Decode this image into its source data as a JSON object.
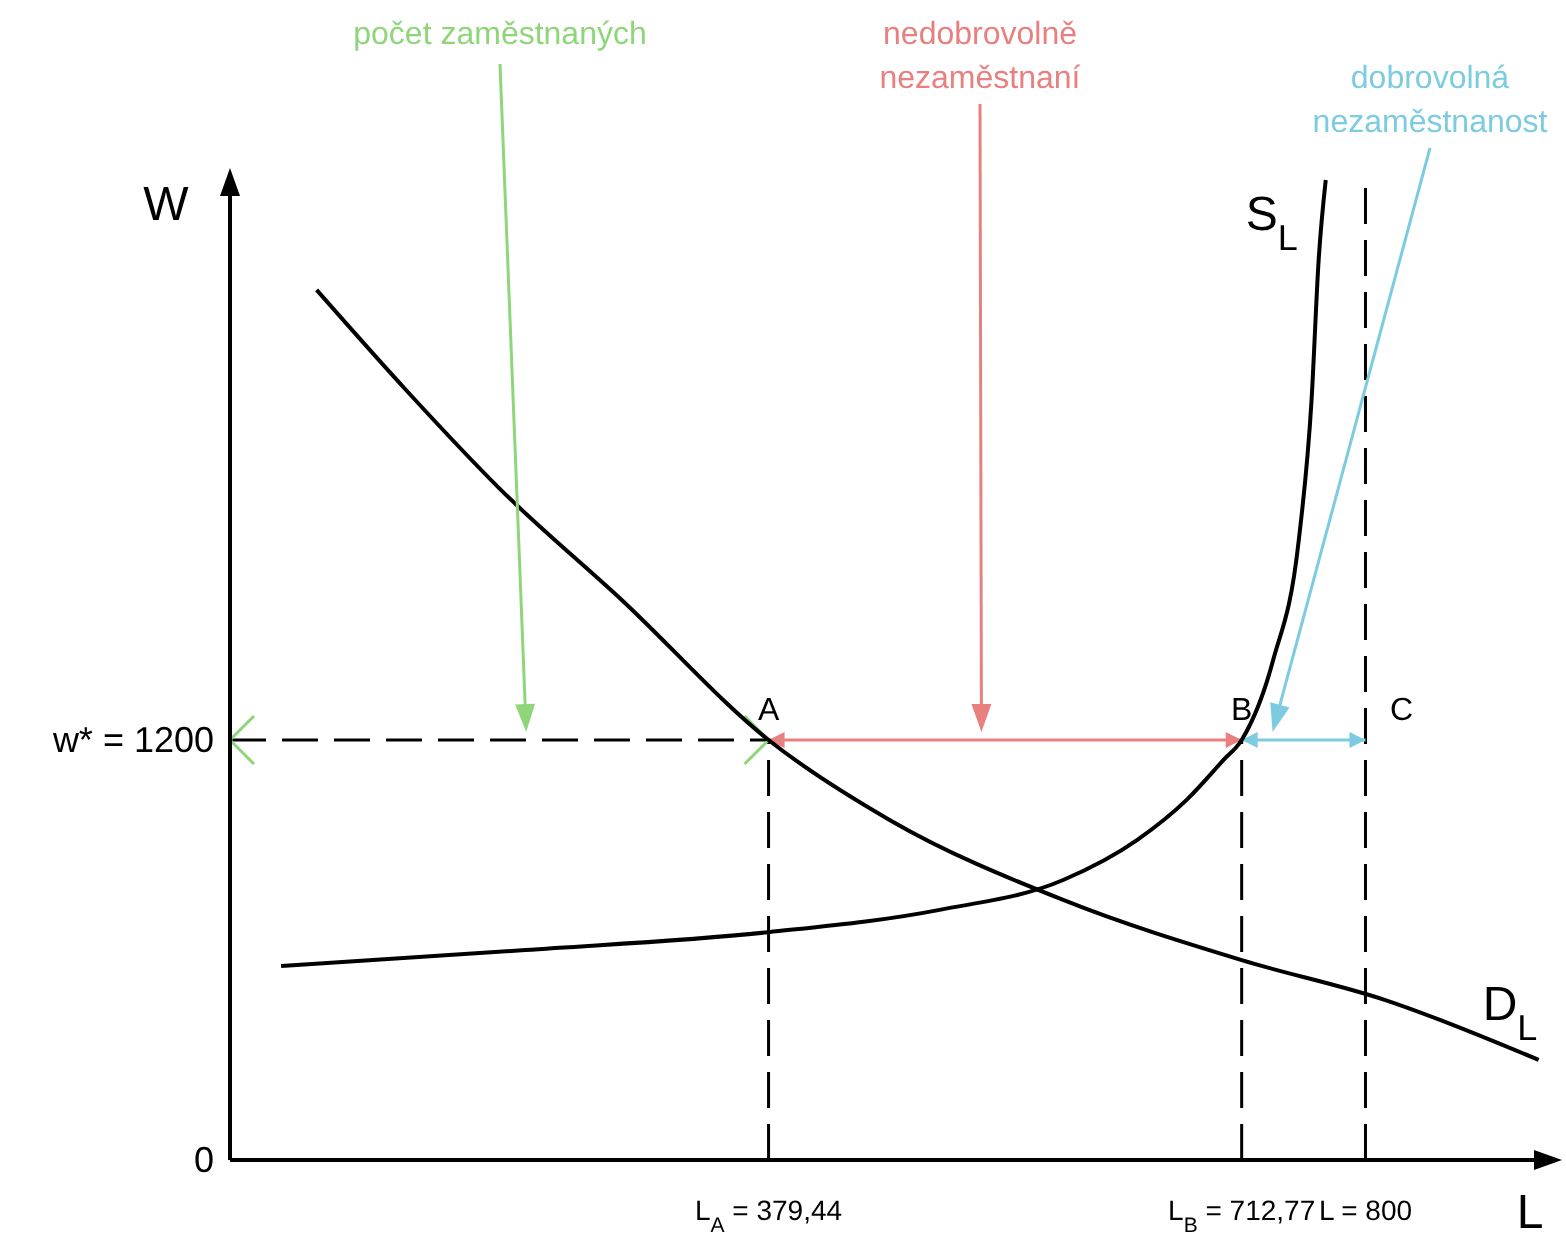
{
  "chart_data": {
    "type": "line",
    "xlabel": "L",
    "ylabel": "W",
    "xlim": [
      0,
      930
    ],
    "ylim": [
      0,
      2800
    ],
    "xticks": [
      {
        "value": 379.44,
        "label": "L$_{A}$ = 379,44"
      },
      {
        "value": 712.77,
        "label": "L$_{B}$ = 712,77"
      },
      {
        "value": 800,
        "label": "L = 800"
      }
    ],
    "yticks": [
      {
        "value": 0,
        "label": "0"
      },
      {
        "value": 1200,
        "label": "w* = 1200"
      }
    ],
    "marker": "none",
    "line_style": "solid",
    "series": [
      {
        "name": "D$_{L}$",
        "color": "#000000",
        "x": [
          61,
          124,
          191,
          276,
          379.44,
          465,
          587,
          712.77,
          814,
          922
        ],
        "values": [
          2486,
          2200,
          1914,
          1600,
          1200,
          971,
          743,
          571,
          457,
          286
        ]
      },
      {
        "name": "S$_{L}$",
        "color": "#000000",
        "x": [
          36,
          208,
          379.44,
          499,
          587,
          639,
          674,
          700,
          712.77,
          735,
          753,
          762,
          767,
          772
        ],
        "values": [
          554,
          600,
          651,
          714,
          800,
          914,
          1029,
          1143,
          1200,
          1429,
          1771,
          2171,
          2571,
          2800
        ]
      }
    ],
    "ref_lines": [
      {
        "axis": "y",
        "value": 1200,
        "label": null,
        "line_style": "dashed",
        "color": "#000000"
      },
      {
        "axis": "x",
        "value": 379.44,
        "label": null,
        "line_style": "dashed",
        "color": "#000000"
      },
      {
        "axis": "x",
        "value": 712.77,
        "label": null,
        "line_style": "dashed",
        "color": "#000000"
      },
      {
        "axis": "x",
        "value": 800,
        "label": null,
        "line_style": "dashed",
        "color": "#000000"
      }
    ],
    "annotations": [
      {
        "text": "A",
        "x": 379.44,
        "y": 1200
      },
      {
        "text": "B",
        "x": 712.77,
        "y": 1200
      },
      {
        "text": "C",
        "x": 800,
        "y": 1200
      },
      "počet zaměstnaných",
      "nedobrovolně\nnezaměstnaní",
      "dobrovolná\nnezaměstnanost"
    ]
  }
}
